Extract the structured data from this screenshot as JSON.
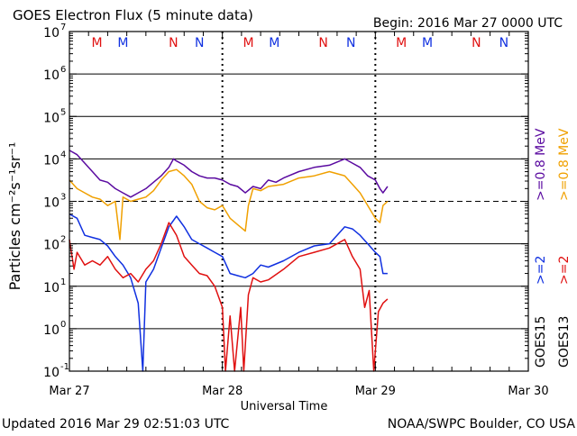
{
  "header": {
    "title": "GOES Electron Flux (5 minute data)",
    "begin": "Begin: 2016 Mar 27 0000 UTC"
  },
  "footer": {
    "updated": "Updated 2016 Mar 29 02:51:03 UTC",
    "source": "NOAA/SWPC Boulder, CO USA"
  },
  "colors": {
    "goes15_low": "#5a0aa0",
    "goes13_low": "#f0a000",
    "goes15_high": "#1030e0",
    "goes13_high": "#e01010",
    "M": "#e01010",
    "N": "#1030e0"
  },
  "chart_data": {
    "type": "line",
    "title": "GOES Electron Flux (5 minute data)",
    "xlabel": "Universal Time",
    "ylabel": "Particles cm⁻²s⁻¹sr⁻¹",
    "x_unit": "days since 2016 Mar 27 0000 UTC",
    "xlim": [
      0,
      3
    ],
    "ylim_log10": [
      -1,
      7
    ],
    "y_scale": "log",
    "x_ticks": [
      {
        "value": 0,
        "label": "Mar 27"
      },
      {
        "value": 1,
        "label": "Mar 28"
      },
      {
        "value": 2,
        "label": "Mar 29"
      },
      {
        "value": 3,
        "label": "Mar 30"
      }
    ],
    "y_ticks": [
      {
        "exp": 7,
        "label": "7"
      },
      {
        "exp": 6,
        "label": "6"
      },
      {
        "exp": 5,
        "label": "5"
      },
      {
        "exp": 4,
        "label": "4"
      },
      {
        "exp": 3,
        "label": "3"
      },
      {
        "exp": 2,
        "label": "2"
      },
      {
        "exp": 1,
        "label": "1"
      },
      {
        "exp": 0,
        "label": "0"
      },
      {
        "exp": -1,
        "label": "-1"
      }
    ],
    "threshold_log10": 3,
    "day_boundaries": [
      1,
      2
    ],
    "markers": [
      {
        "x": 0.18,
        "label": "M",
        "color": "#e01010"
      },
      {
        "x": 0.35,
        "label": "M",
        "color": "#1030e0"
      },
      {
        "x": 0.68,
        "label": "N",
        "color": "#e01010"
      },
      {
        "x": 0.85,
        "label": "N",
        "color": "#1030e0"
      },
      {
        "x": 1.17,
        "label": "M",
        "color": "#e01010"
      },
      {
        "x": 1.34,
        "label": "M",
        "color": "#1030e0"
      },
      {
        "x": 1.66,
        "label": "N",
        "color": "#e01010"
      },
      {
        "x": 1.84,
        "label": "N",
        "color": "#1030e0"
      },
      {
        "x": 2.17,
        "label": "M",
        "color": "#e01010"
      },
      {
        "x": 2.34,
        "label": "M",
        "color": "#1030e0"
      },
      {
        "x": 2.66,
        "label": "N",
        "color": "#e01010"
      },
      {
        "x": 2.84,
        "label": "N",
        "color": "#1030e0"
      }
    ],
    "series": [
      {
        "name": "GOES15 >=0.8 MeV",
        "color": "#5a0aa0",
        "points": [
          [
            0,
            4.2
          ],
          [
            0.05,
            4.1
          ],
          [
            0.1,
            3.9
          ],
          [
            0.15,
            3.7
          ],
          [
            0.2,
            3.5
          ],
          [
            0.25,
            3.45
          ],
          [
            0.3,
            3.3
          ],
          [
            0.35,
            3.2
          ],
          [
            0.4,
            3.1
          ],
          [
            0.45,
            3.2
          ],
          [
            0.5,
            3.3
          ],
          [
            0.55,
            3.45
          ],
          [
            0.6,
            3.6
          ],
          [
            0.65,
            3.8
          ],
          [
            0.68,
            4.0
          ],
          [
            0.7,
            3.95
          ],
          [
            0.75,
            3.85
          ],
          [
            0.8,
            3.7
          ],
          [
            0.85,
            3.6
          ],
          [
            0.9,
            3.55
          ],
          [
            0.95,
            3.55
          ],
          [
            1.0,
            3.5
          ],
          [
            1.05,
            3.4
          ],
          [
            1.1,
            3.35
          ],
          [
            1.15,
            3.2
          ],
          [
            1.2,
            3.35
          ],
          [
            1.25,
            3.3
          ],
          [
            1.3,
            3.5
          ],
          [
            1.35,
            3.45
          ],
          [
            1.4,
            3.55
          ],
          [
            1.5,
            3.7
          ],
          [
            1.6,
            3.8
          ],
          [
            1.7,
            3.85
          ],
          [
            1.8,
            4.0
          ],
          [
            1.85,
            3.9
          ],
          [
            1.9,
            3.8
          ],
          [
            1.95,
            3.6
          ],
          [
            2.0,
            3.5
          ],
          [
            2.03,
            3.3
          ],
          [
            2.05,
            3.2
          ],
          [
            2.08,
            3.35
          ]
        ]
      },
      {
        "name": "GOES13 >=0.8 MeV",
        "color": "#f0a000",
        "points": [
          [
            0,
            3.5
          ],
          [
            0.05,
            3.3
          ],
          [
            0.1,
            3.2
          ],
          [
            0.15,
            3.1
          ],
          [
            0.2,
            3.05
          ],
          [
            0.25,
            2.9
          ],
          [
            0.3,
            3.0
          ],
          [
            0.33,
            2.1
          ],
          [
            0.35,
            3.1
          ],
          [
            0.4,
            3.0
          ],
          [
            0.45,
            3.05
          ],
          [
            0.5,
            3.1
          ],
          [
            0.55,
            3.25
          ],
          [
            0.6,
            3.5
          ],
          [
            0.65,
            3.7
          ],
          [
            0.7,
            3.75
          ],
          [
            0.75,
            3.6
          ],
          [
            0.8,
            3.4
          ],
          [
            0.85,
            3.0
          ],
          [
            0.9,
            2.85
          ],
          [
            0.95,
            2.8
          ],
          [
            1.0,
            2.9
          ],
          [
            1.05,
            2.6
          ],
          [
            1.1,
            2.45
          ],
          [
            1.15,
            2.3
          ],
          [
            1.17,
            2.9
          ],
          [
            1.2,
            3.3
          ],
          [
            1.25,
            3.25
          ],
          [
            1.3,
            3.35
          ],
          [
            1.4,
            3.4
          ],
          [
            1.5,
            3.55
          ],
          [
            1.6,
            3.6
          ],
          [
            1.7,
            3.7
          ],
          [
            1.8,
            3.6
          ],
          [
            1.85,
            3.4
          ],
          [
            1.9,
            3.2
          ],
          [
            1.95,
            2.9
          ],
          [
            2.0,
            2.6
          ],
          [
            2.03,
            2.5
          ],
          [
            2.05,
            2.9
          ],
          [
            2.08,
            3.0
          ]
        ]
      },
      {
        "name": "GOES15 >=2 MeV",
        "color": "#1030e0",
        "points": [
          [
            0,
            2.7
          ],
          [
            0.05,
            2.6
          ],
          [
            0.1,
            2.2
          ],
          [
            0.15,
            2.15
          ],
          [
            0.2,
            2.1
          ],
          [
            0.25,
            1.95
          ],
          [
            0.3,
            1.7
          ],
          [
            0.35,
            1.5
          ],
          [
            0.4,
            1.2
          ],
          [
            0.45,
            0.6
          ],
          [
            0.48,
            -1.0
          ],
          [
            0.5,
            1.1
          ],
          [
            0.55,
            1.4
          ],
          [
            0.6,
            1.9
          ],
          [
            0.65,
            2.4
          ],
          [
            0.7,
            2.65
          ],
          [
            0.75,
            2.4
          ],
          [
            0.8,
            2.1
          ],
          [
            0.85,
            2.0
          ],
          [
            0.9,
            1.9
          ],
          [
            0.95,
            1.8
          ],
          [
            1.0,
            1.7
          ],
          [
            1.05,
            1.3
          ],
          [
            1.1,
            1.25
          ],
          [
            1.15,
            1.2
          ],
          [
            1.2,
            1.3
          ],
          [
            1.25,
            1.5
          ],
          [
            1.3,
            1.45
          ],
          [
            1.4,
            1.6
          ],
          [
            1.5,
            1.8
          ],
          [
            1.6,
            1.95
          ],
          [
            1.7,
            2.0
          ],
          [
            1.8,
            2.4
          ],
          [
            1.85,
            2.35
          ],
          [
            1.9,
            2.2
          ],
          [
            1.95,
            2.0
          ],
          [
            2.0,
            1.8
          ],
          [
            2.03,
            1.7
          ],
          [
            2.05,
            1.3
          ],
          [
            2.08,
            1.3
          ]
        ]
      },
      {
        "name": "GOES13 >=2 MeV",
        "color": "#e01010",
        "points": [
          [
            0,
            2.1
          ],
          [
            0.03,
            1.4
          ],
          [
            0.05,
            1.8
          ],
          [
            0.1,
            1.5
          ],
          [
            0.15,
            1.6
          ],
          [
            0.2,
            1.5
          ],
          [
            0.25,
            1.7
          ],
          [
            0.3,
            1.4
          ],
          [
            0.35,
            1.2
          ],
          [
            0.4,
            1.3
          ],
          [
            0.45,
            1.1
          ],
          [
            0.5,
            1.4
          ],
          [
            0.55,
            1.6
          ],
          [
            0.6,
            2.0
          ],
          [
            0.65,
            2.5
          ],
          [
            0.7,
            2.2
          ],
          [
            0.75,
            1.7
          ],
          [
            0.8,
            1.5
          ],
          [
            0.85,
            1.3
          ],
          [
            0.9,
            1.25
          ],
          [
            0.95,
            1.0
          ],
          [
            1.0,
            0.5
          ],
          [
            1.02,
            -1.0
          ],
          [
            1.05,
            0.3
          ],
          [
            1.08,
            -1.0
          ],
          [
            1.12,
            0.5
          ],
          [
            1.14,
            -1.0
          ],
          [
            1.17,
            0.8
          ],
          [
            1.2,
            1.2
          ],
          [
            1.25,
            1.1
          ],
          [
            1.3,
            1.15
          ],
          [
            1.4,
            1.4
          ],
          [
            1.5,
            1.7
          ],
          [
            1.6,
            1.8
          ],
          [
            1.7,
            1.9
          ],
          [
            1.8,
            2.1
          ],
          [
            1.85,
            1.7
          ],
          [
            1.9,
            1.4
          ],
          [
            1.93,
            0.5
          ],
          [
            1.96,
            0.9
          ],
          [
            1.99,
            -1.0
          ],
          [
            2.02,
            0.4
          ],
          [
            2.05,
            0.6
          ],
          [
            2.08,
            0.7
          ]
        ]
      }
    ],
    "legends": {
      "goes15": {
        "label": "GOES15",
        "low": ">=0.8 MeV",
        "high": ">=2"
      },
      "goes13": {
        "label": "GOES13",
        "low": ">=0.8 MeV",
        "high": ">=2"
      }
    }
  }
}
